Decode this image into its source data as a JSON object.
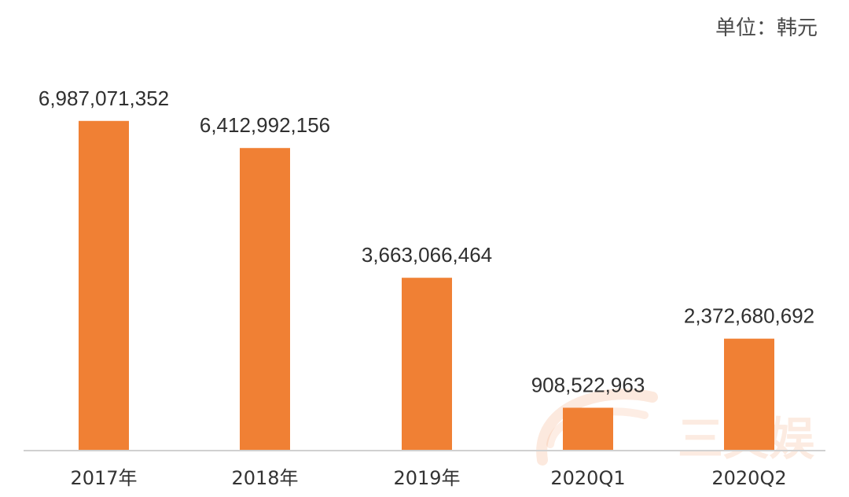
{
  "unit_label": "单位：韩元",
  "watermark": "三文娱",
  "colors": {
    "bar": "#F08034",
    "axis": "#D0D0D0",
    "watermark": "#F3A77A"
  },
  "chart_data": {
    "type": "bar",
    "title": "",
    "xlabel": "",
    "ylabel": "",
    "categories": [
      "2017年",
      "2018年",
      "2019年",
      "2020Q1",
      "2020Q2"
    ],
    "values": [
      6987071352,
      6412992156,
      3663066464,
      908522963,
      2372680692
    ],
    "data_labels": [
      "6,987,071,352",
      "6,412,992,156",
      "3,663,066,464",
      "908,522,963",
      "2,372,680,692"
    ],
    "ylim": [
      0,
      7000000000
    ],
    "grid": false,
    "legend": "none"
  }
}
